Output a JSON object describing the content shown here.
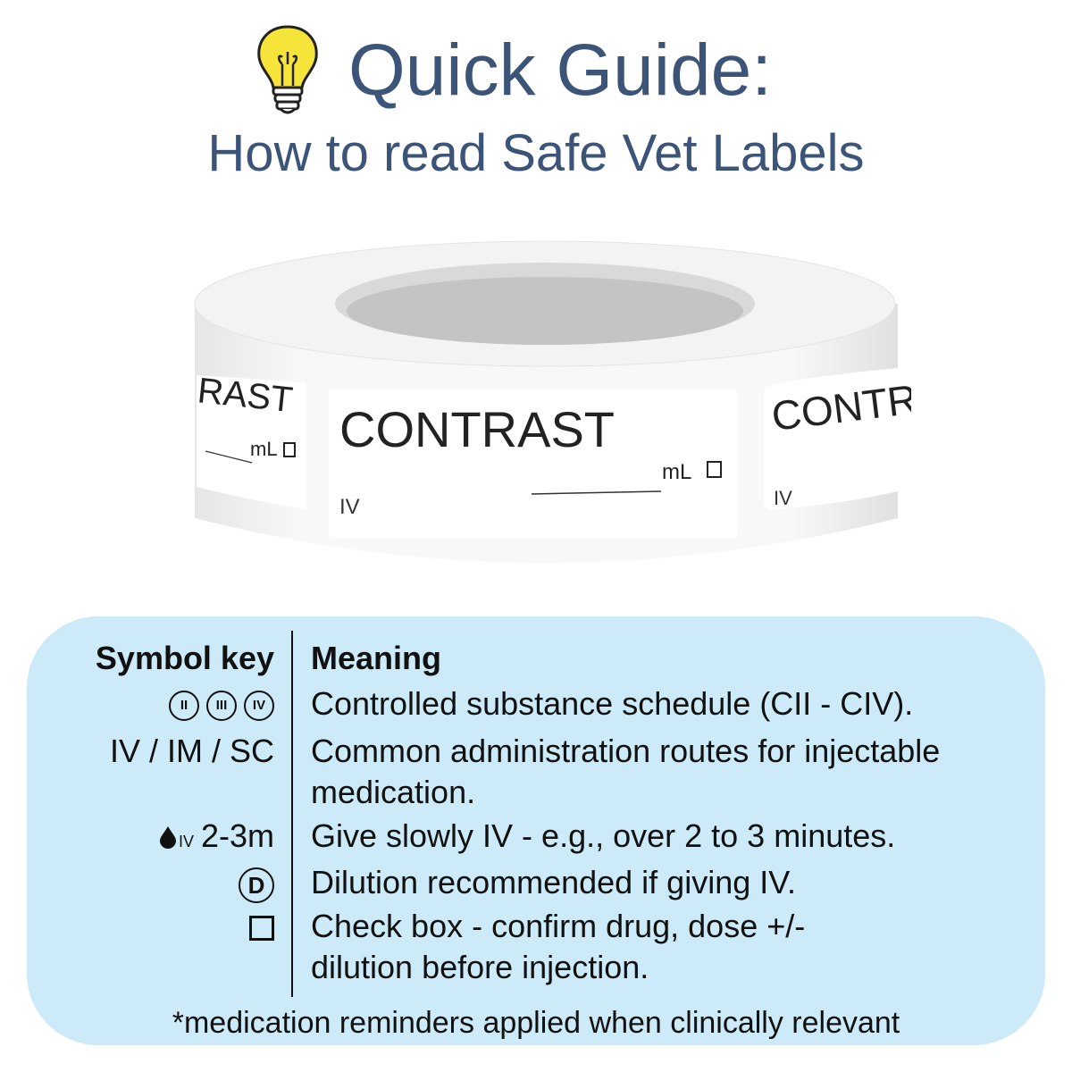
{
  "header": {
    "title": "Quick Guide:",
    "subtitle": "How to read Safe Vet Labels",
    "icon": "lightbulb-icon"
  },
  "label_roll": {
    "drug_name": "CONTRAST",
    "route": "IV",
    "unit": "mL",
    "partial_left_name": "RAST",
    "partial_right_name": "CONTRAST"
  },
  "key": {
    "header_symbol": "Symbol key",
    "header_meaning": "Meaning",
    "rows": [
      {
        "symbols": [
          "II",
          "III",
          "IV"
        ],
        "meaning": "Controlled substance schedule (CII - CIV)."
      },
      {
        "symbol": "IV / IM / SC",
        "meaning": "Common administration routes for injectable medication."
      },
      {
        "symbol_small": "IV",
        "symbol": "2-3m",
        "icon": "drop-icon",
        "meaning": "Give slowly IV - e.g., over 2 to 3 minutes."
      },
      {
        "symbol": "D",
        "meaning": "Dilution recommended if giving IV."
      },
      {
        "icon": "checkbox-icon",
        "meaning": "Check box - confirm drug, dose +/- dilution before injection."
      }
    ],
    "footer": "*medication reminders applied when clinically relevant"
  },
  "colors": {
    "title": "#3b5478",
    "panel": "#cdeaf9",
    "text": "#111111"
  }
}
